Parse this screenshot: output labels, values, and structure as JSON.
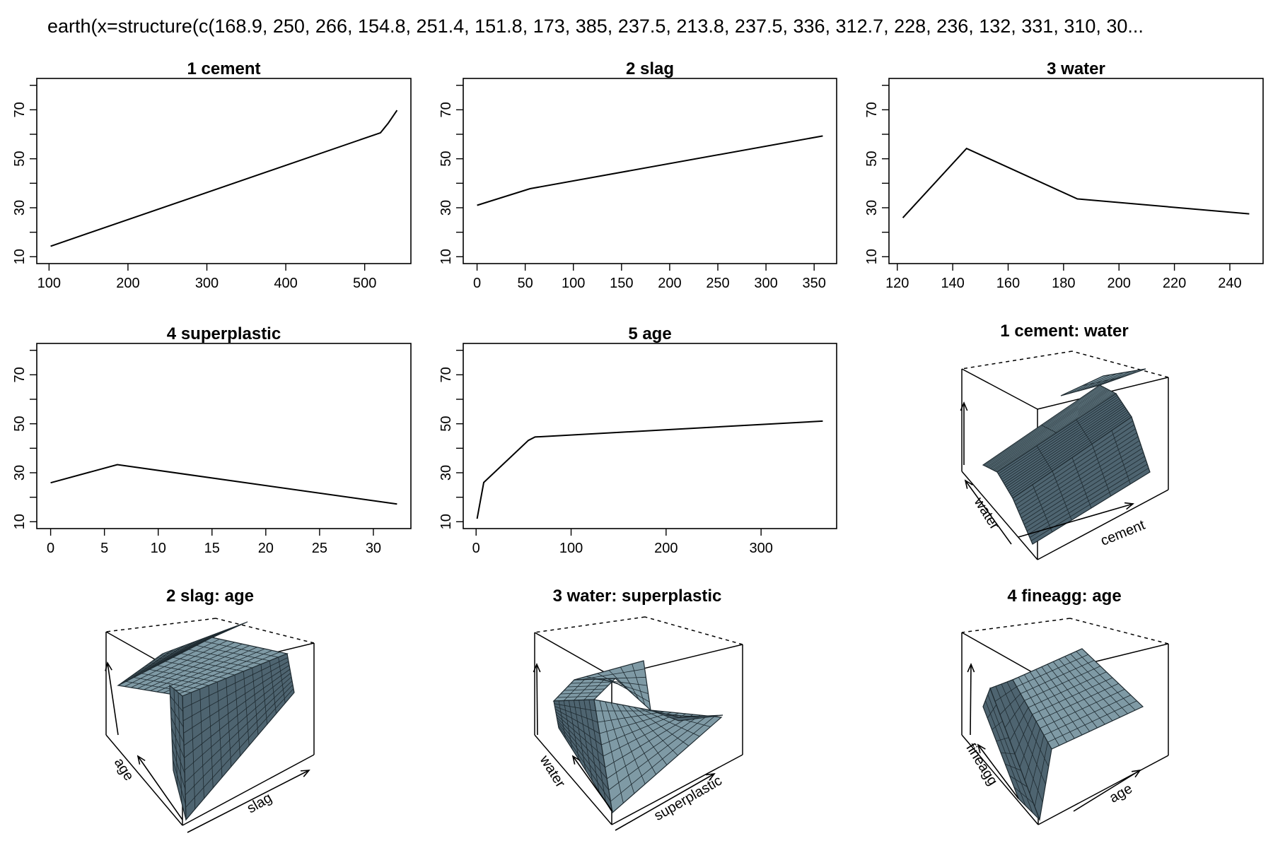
{
  "main_title": "earth(x=structure(c(168.9, 250, 266, 154.8, 251.4, 151.8, 173, 385, 237.5, 213.8, 237.5, 336, 312.7, 228, 236, 132, 331, 310, 30...",
  "colors": {
    "line": "#000000",
    "surface": "#7f9aa5",
    "surface_dark": "#4e6470",
    "grid": "#222222"
  },
  "chart_data": [
    {
      "type": "line",
      "title": "1  cement",
      "xlabel": "",
      "ylabel": "",
      "x": [
        102,
        520,
        530,
        541
      ],
      "y": [
        14.3,
        60.6,
        64.6,
        69.8
      ],
      "xlim": [
        102,
        541
      ],
      "ylim": [
        10,
        80
      ],
      "xticks": [
        100,
        200,
        300,
        400,
        500
      ],
      "yticks": [
        10,
        30,
        50,
        70
      ]
    },
    {
      "type": "line",
      "title": "2  slag",
      "xlabel": "",
      "ylabel": "",
      "x": [
        0,
        55,
        359
      ],
      "y": [
        31.0,
        37.8,
        59.3
      ],
      "xlim": [
        0,
        359
      ],
      "ylim": [
        10,
        80
      ],
      "xticks": [
        0,
        50,
        100,
        150,
        200,
        250,
        300,
        350
      ],
      "yticks": [
        10,
        30,
        50,
        70
      ]
    },
    {
      "type": "line",
      "title": "3  water",
      "xlabel": "",
      "ylabel": "",
      "x": [
        122,
        145,
        185,
        247
      ],
      "y": [
        25.9,
        54.2,
        33.6,
        27.5
      ],
      "xlim": [
        122,
        247
      ],
      "ylim": [
        10,
        80
      ],
      "xticks": [
        120,
        140,
        160,
        180,
        200,
        220,
        240
      ],
      "yticks": [
        10,
        30,
        50,
        70
      ]
    },
    {
      "type": "line",
      "title": "4  superplastic",
      "xlabel": "",
      "ylabel": "",
      "x": [
        0,
        6.2,
        32.2
      ],
      "y": [
        25.9,
        33.3,
        17.2
      ],
      "xlim": [
        0,
        32.2
      ],
      "ylim": [
        10,
        80
      ],
      "xticks": [
        0,
        5,
        10,
        15,
        20,
        25,
        30
      ],
      "yticks": [
        10,
        30,
        50,
        70
      ]
    },
    {
      "type": "line",
      "title": "5  age",
      "xlabel": "",
      "ylabel": "",
      "x": [
        1,
        8,
        55,
        62,
        365
      ],
      "y": [
        11.2,
        26.0,
        43.2,
        44.6,
        51.1
      ],
      "xlim": [
        1,
        365
      ],
      "ylim": [
        10,
        80
      ],
      "xticks": [
        0,
        100,
        200,
        300
      ],
      "yticks": [
        10,
        30,
        50,
        70
      ]
    },
    {
      "type": "surface",
      "title": "1 cement: water",
      "xlabel": "cement",
      "ylabel": "water"
    },
    {
      "type": "surface",
      "title": "2 slag: age",
      "xlabel": "slag",
      "ylabel": "age"
    },
    {
      "type": "surface",
      "title": "3 water: superplastic",
      "xlabel": "superplastic",
      "ylabel": "water"
    },
    {
      "type": "surface",
      "title": "4 fineagg: age",
      "xlabel": "age",
      "ylabel": "fineagg"
    }
  ]
}
